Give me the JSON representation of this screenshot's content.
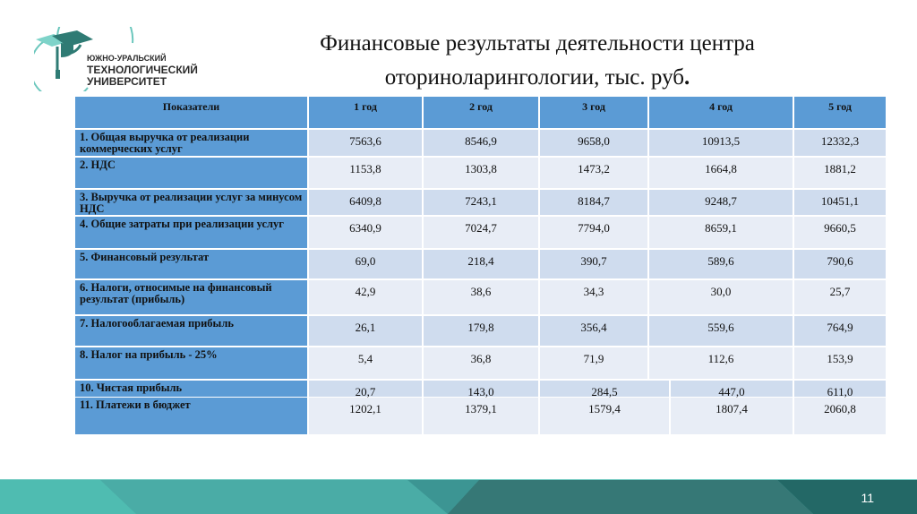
{
  "logo": {
    "icon": "graduation-cap-icon",
    "line1": "ЮЖНО-УРАЛЬСКИЙ",
    "line2": "ТЕХНОЛОГИЧЕСКИЙ",
    "line3": "УНИВЕРСИТЕТ"
  },
  "title": {
    "line1": "Финансовые результаты деятельности центра",
    "line2": "оториноларингологии, тыс. руб",
    "dot": "."
  },
  "table": {
    "headers": [
      "Показатели",
      "1 год",
      "2 год",
      "3 год",
      "4 год",
      "5 год"
    ],
    "rows": [
      {
        "label": "1. Общая выручка от реализации коммерческих услуг",
        "values": [
          "7563,6",
          "8546,9",
          "9658,0",
          "10913,5",
          "12332,3"
        ]
      },
      {
        "label": "2. НДС",
        "values": [
          "1153,8",
          "1303,8",
          "1473,2",
          "1664,8",
          "1881,2"
        ]
      },
      {
        "label": "3. Выручка от реализации услуг за минусом НДС",
        "values": [
          "6409,8",
          "7243,1",
          "8184,7",
          "9248,7",
          "10451,1"
        ]
      },
      {
        "label": "4. Общие затраты при реализации услуг",
        "values": [
          "6340,9",
          "7024,7",
          "7794,0",
          "8659,1",
          "9660,5"
        ]
      },
      {
        "label": "5. Финансовый результат",
        "values": [
          "69,0",
          "218,4",
          "390,7",
          "589,6",
          "790,6"
        ]
      },
      {
        "label": "6. Налоги, относимые на финансовый результат (прибыль)",
        "values": [
          "42,9",
          "38,6",
          "34,3",
          "30,0",
          "25,7"
        ]
      },
      {
        "label": "7. Налогооблагаемая прибыль",
        "values": [
          "26,1",
          "179,8",
          "356,4",
          "559,6",
          "764,9"
        ]
      },
      {
        "label": "8. Налог на прибыль - 25%",
        "values": [
          "5,4",
          "36,8",
          "71,9",
          "112,6",
          "153,9"
        ]
      },
      {
        "label": "10. Чистая прибыль",
        "values": [
          "20,7",
          "143,0",
          "284,5",
          "447,0",
          "611,0"
        ]
      },
      {
        "label": "11. Платежи в бюджет",
        "values": [
          "1202,1",
          "1379,1",
          "1579,4",
          "1807,4",
          "2060,8"
        ]
      }
    ]
  },
  "footer": {
    "page_number": "11",
    "colors": [
      "#4fbcb1",
      "#4aaca6",
      "#3a9290",
      "#367876",
      "#236866"
    ]
  }
}
